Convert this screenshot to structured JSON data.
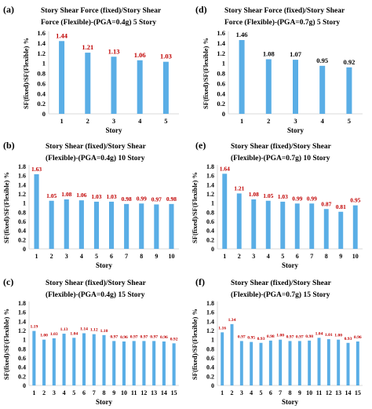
{
  "chart_data": [
    {
      "id": "a",
      "type": "bar",
      "panel_label": "(a)",
      "title_lines": [
        "Story Shear Force  (fixed)/Story Shear",
        "Force (Flexible)-(PGA=0.4g)   5 Story"
      ],
      "ylabel": "SF(fixed)/SF(Flexible)  %",
      "xlabel": "Story",
      "ylim": [
        0,
        1.6
      ],
      "yticks": [
        "0",
        "0.2",
        "0.4",
        "0.6",
        "0.8",
        "1",
        "1.2",
        "1.4",
        "1.6"
      ],
      "categories": [
        "1",
        "2",
        "3",
        "4",
        "5"
      ],
      "values": [
        1.44,
        1.21,
        1.13,
        1.06,
        1.03
      ],
      "data_labels": [
        "1.44",
        "1.21",
        "1.13",
        "1.06",
        "1.03"
      ],
      "label_color": "#c00000",
      "bar_color": "#5aaee6"
    },
    {
      "id": "d",
      "type": "bar",
      "panel_label": "(d)",
      "title_lines": [
        "Story Shear Force  (fixed)/Story Shear",
        "Force (Flexible)-(PGA=0.7g)   5 Story"
      ],
      "ylabel": "SF(fixed)/SF(Flexible)  %",
      "xlabel": "Story",
      "ylim": [
        0,
        1.6
      ],
      "yticks": [
        "0",
        "0.2",
        "0.4",
        "0.6",
        "0.8",
        "1",
        "1.2",
        "1.4",
        "1.6"
      ],
      "categories": [
        "1",
        "2",
        "3",
        "4",
        "5"
      ],
      "values": [
        1.46,
        1.08,
        1.07,
        0.95,
        0.92
      ],
      "data_labels": [
        "1.46",
        "1.08",
        "1.07",
        "0.95",
        "0.92"
      ],
      "label_color": "#000000",
      "bar_color": "#5aaee6"
    },
    {
      "id": "b",
      "type": "bar",
      "panel_label": "(b)",
      "title_lines": [
        "Story Shear (fixed)/Story Shear",
        "(Flexible)-(PGA=0.4g)   10 Story"
      ],
      "ylabel": "SF(fixed)/SF(Flexible)  %",
      "xlabel": "Story",
      "ylim": [
        0,
        1.8
      ],
      "yticks": [
        "0",
        "0.2",
        "0.4",
        "0.6",
        "0.8",
        "1",
        "1.2",
        "1.4",
        "1.6",
        "1.8"
      ],
      "categories": [
        "1",
        "2",
        "3",
        "4",
        "5",
        "6",
        "7",
        "8",
        "9",
        "10"
      ],
      "values": [
        1.63,
        1.05,
        1.08,
        1.06,
        1.03,
        1.03,
        0.98,
        0.99,
        0.97,
        0.98
      ],
      "data_labels": [
        "1.63",
        "1.05",
        "1.08",
        "1.06",
        "1.03",
        "1.03",
        "0.98",
        "0.99",
        "0.97",
        "0.98"
      ],
      "label_color": "#c00000",
      "bar_color": "#5aaee6"
    },
    {
      "id": "e",
      "type": "bar",
      "panel_label": "(e)",
      "title_lines": [
        "Story Shear (fixed)/Story Shear",
        "(Flexible)-(PGA=0.7g)   10 Story"
      ],
      "ylabel": "SF(fixed)/SF(Flexible)  %",
      "xlabel": "Story",
      "ylim": [
        0,
        1.8
      ],
      "yticks": [
        "0",
        "0.2",
        "0.4",
        "0.6",
        "0.8",
        "1",
        "1.2",
        "1.4",
        "1.6",
        "1.8"
      ],
      "categories": [
        "1",
        "2",
        "3",
        "4",
        "5",
        "6",
        "7",
        "8",
        "9",
        "10"
      ],
      "values": [
        1.64,
        1.21,
        1.08,
        1.05,
        1.03,
        0.99,
        0.99,
        0.87,
        0.81,
        0.95
      ],
      "data_labels": [
        "1.64",
        "1.21",
        "1.08",
        "1.05",
        "1.03",
        "0.99",
        "0.99",
        "0.87",
        "0.81",
        "0.95"
      ],
      "label_color": "#c00000",
      "bar_color": "#5aaee6"
    },
    {
      "id": "c",
      "type": "bar",
      "panel_label": "(c)",
      "title_lines": [
        "Story Shear (fixed)/Story Shear",
        "(Flexible)-(PGA=0.4g)   15 Story"
      ],
      "ylabel": "SF(fixed)/SF(Flexible)  %",
      "xlabel": "Story",
      "ylim": [
        0,
        1.8
      ],
      "yticks": [
        "0",
        "0.2",
        "0.4",
        "0.6",
        "0.8",
        "1",
        "1.2",
        "1.4",
        "1.6",
        "1.8"
      ],
      "categories": [
        "1",
        "2",
        "3",
        "4",
        "5",
        "6",
        "7",
        "8",
        "9",
        "10",
        "11",
        "12",
        "13",
        "14",
        "15"
      ],
      "values": [
        1.19,
        1.0,
        1.03,
        1.13,
        1.04,
        1.14,
        1.12,
        1.1,
        0.97,
        0.96,
        0.97,
        0.97,
        0.97,
        0.96,
        0.92
      ],
      "data_labels": [
        "1.19",
        "1.00",
        "1.03",
        "1.13",
        "1.04",
        "1.14",
        "1.12",
        "1.10",
        "0.97",
        "0.96",
        "0.97",
        "0.97",
        "0.97",
        "0.96",
        "0.92"
      ],
      "label_color": "#c00000",
      "bar_color": "#5aaee6"
    },
    {
      "id": "f",
      "type": "bar",
      "panel_label": "(f)",
      "title_lines": [
        "Story Shear (fixed)/Story Shear",
        "(Flexible)-(PGA=0.7g)  15 Story"
      ],
      "ylabel": "SF(fixed)/SF(Flexible)  %",
      "xlabel": "Story",
      "ylim": [
        0,
        1.8
      ],
      "yticks": [
        "0",
        "0.2",
        "0.4",
        "0.6",
        "0.8",
        "1",
        "1.2",
        "1.4",
        "1.6",
        "1.8"
      ],
      "categories": [
        "1",
        "2",
        "3",
        "4",
        "5",
        "6",
        "7",
        "8",
        "9",
        "10",
        "11",
        "12",
        "13",
        "14",
        "15"
      ],
      "values": [
        1.16,
        1.34,
        0.97,
        0.95,
        0.93,
        0.98,
        1.0,
        0.97,
        0.97,
        0.98,
        1.04,
        1.01,
        1.0,
        0.93,
        0.96
      ],
      "data_labels": [
        "1.16",
        "1.34",
        "0.97",
        "0.95",
        "0.93",
        "0.98",
        "1.00",
        "0.97",
        "0.97",
        "0.98",
        "1.04",
        "1.01",
        "1.00",
        "0.93",
        "0.96"
      ],
      "label_color": "#c00000",
      "bar_color": "#5aaee6"
    }
  ]
}
